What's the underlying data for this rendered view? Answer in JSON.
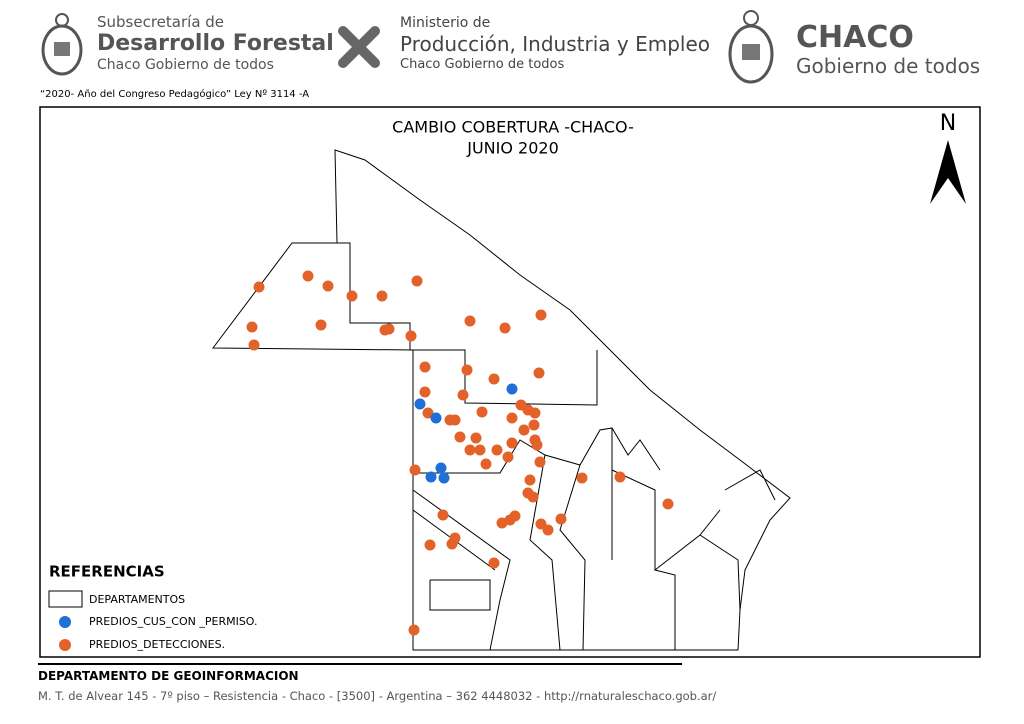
{
  "header": {
    "left": {
      "line1": "Subsecretaría de",
      "line2": "Desarrollo Forestal",
      "line3": "Chaco Gobierno de todos"
    },
    "center": {
      "line1": "Ministerio de",
      "line2": "Producción, Industria y Empleo",
      "line3": "Chaco Gobierno de todos"
    },
    "right": {
      "line1": "CHACO",
      "line2": "Gobierno de todos"
    },
    "note": "“2020- Año del Congreso Pedagógico” Ley Nº 3114 -A"
  },
  "map": {
    "title_line1": "CAMBIO COBERTURA -CHACO-",
    "title_line2": "JUNIO 2020",
    "north": "N",
    "legend": {
      "title": "REFERENCIAS",
      "items": [
        "DEPARTAMENTOS",
        "PREDIOS_CUS_CON _PERMISO.",
        "PREDIOS_DETECCIONES."
      ]
    }
  },
  "footer": {
    "title": "DEPARTAMENTO DE GEOINFORMACION",
    "address": "M. T. de Alvear 145 - 7º piso – Resistencia - Chaco  - [3500] - Argentina – 362 4448032 -  http://rnaturaleschaco.gob.ar/"
  }
}
